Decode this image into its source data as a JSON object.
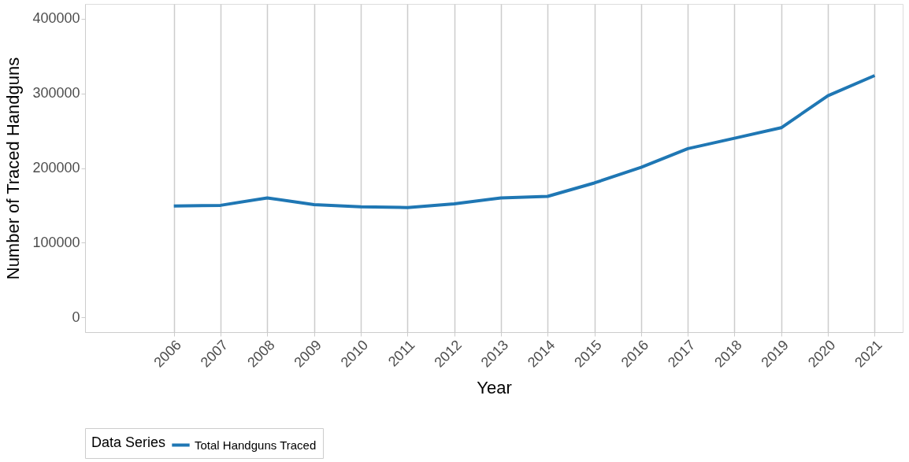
{
  "chart_data": {
    "type": "line",
    "xlabel": "Year",
    "ylabel": "Number of Traced Handguns",
    "legend_title": "Data Series",
    "categories": [
      "2006",
      "2007",
      "2008",
      "2009",
      "2010",
      "2011",
      "2012",
      "2013",
      "2014",
      "2015",
      "2016",
      "2017",
      "2018",
      "2019",
      "2020",
      "2021"
    ],
    "series": [
      {
        "name": "Total Handguns Traced",
        "color": "#1f77b4",
        "values": [
          149000,
          150000,
          160000,
          151000,
          148000,
          147000,
          152000,
          160000,
          162000,
          180000,
          201000,
          226000,
          240000,
          254000,
          297000,
          324000
        ]
      }
    ],
    "ylim": [
      -20000,
      420000
    ],
    "yticks": [
      0,
      100000,
      200000,
      300000,
      400000
    ],
    "grid": "x",
    "legend": "bottom",
    "marker": "none",
    "line_style": "solid"
  }
}
